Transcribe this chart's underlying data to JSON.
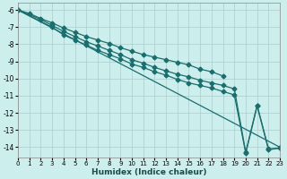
{
  "xlabel": "Humidex (Indice chaleur)",
  "bg_color": "#cceeed",
  "grid_color": "#aacccc",
  "line_color": "#1a6e6e",
  "xlim": [
    0,
    23
  ],
  "ylim": [
    -14.6,
    -5.6
  ],
  "yticks": [
    -6,
    -7,
    -8,
    -9,
    -10,
    -11,
    -12,
    -13,
    -14
  ],
  "xticks": [
    0,
    1,
    2,
    3,
    4,
    5,
    6,
    7,
    8,
    9,
    10,
    11,
    12,
    13,
    14,
    15,
    16,
    17,
    18,
    19,
    20,
    21,
    22,
    23
  ],
  "series": [
    {
      "x": [
        0,
        23
      ],
      "y": [
        -6.0,
        -14.0
      ],
      "marker": null,
      "markersize": 0,
      "linewidth": 0.9
    },
    {
      "x": [
        0,
        1,
        2,
        3,
        4,
        5,
        6,
        7,
        8,
        9,
        10,
        11,
        12,
        13,
        14,
        15,
        16,
        17,
        18
      ],
      "y": [
        -6.0,
        -6.2,
        -6.5,
        -6.75,
        -7.05,
        -7.3,
        -7.55,
        -7.75,
        -7.95,
        -8.2,
        -8.4,
        -8.6,
        -8.75,
        -8.9,
        -9.05,
        -9.2,
        -9.45,
        -9.6,
        -9.85
      ],
      "marker": "D",
      "markersize": 2.5,
      "linewidth": 0.9
    },
    {
      "x": [
        0,
        2,
        3,
        4,
        5,
        6,
        7,
        8,
        9,
        10,
        11,
        12,
        13,
        14,
        15,
        16,
        17,
        18,
        19,
        20,
        21,
        22,
        23
      ],
      "y": [
        -6.0,
        -6.55,
        -6.9,
        -7.25,
        -7.55,
        -7.85,
        -8.1,
        -8.35,
        -8.6,
        -8.9,
        -9.1,
        -9.35,
        -9.55,
        -9.75,
        -9.9,
        -10.1,
        -10.25,
        -10.4,
        -10.6,
        -14.3,
        -11.55,
        -14.1,
        -14.05
      ],
      "marker": "D",
      "markersize": 2.5,
      "linewidth": 0.9
    },
    {
      "x": [
        0,
        3,
        4,
        5,
        6,
        7,
        8,
        9,
        10,
        11,
        12,
        13,
        14,
        15,
        16,
        17,
        18,
        19,
        20,
        21,
        22,
        23
      ],
      "y": [
        -6.0,
        -7.0,
        -7.45,
        -7.75,
        -8.05,
        -8.35,
        -8.6,
        -8.85,
        -9.15,
        -9.35,
        -9.6,
        -9.8,
        -10.05,
        -10.25,
        -10.4,
        -10.55,
        -10.75,
        -10.95,
        -14.35,
        -11.6,
        -14.15,
        -14.05
      ],
      "marker": "D",
      "markersize": 2.5,
      "linewidth": 0.9
    }
  ]
}
